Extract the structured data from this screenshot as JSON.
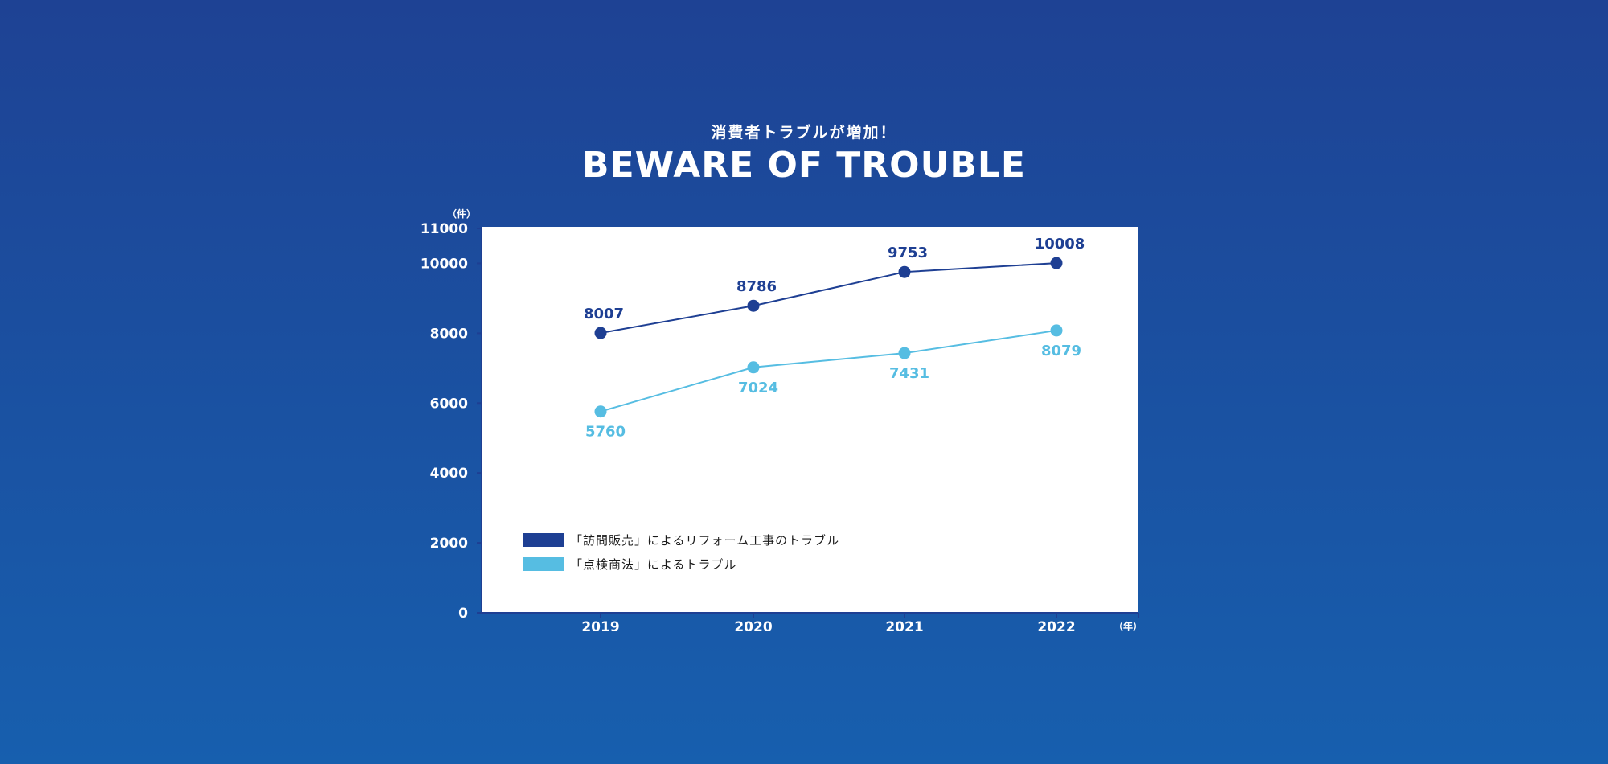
{
  "header": {
    "subtitle": "消費者トラブルが増加！",
    "title": "BEWARE OF TROUBLE"
  },
  "colors": {
    "background_top": "#1e4294",
    "background_bottom": "#175fae",
    "series_dark": "#1e3f93",
    "series_light": "#56bde2",
    "plot_background": "#ffffff"
  },
  "chart_data": {
    "type": "line",
    "x": [
      "2019",
      "2020",
      "2021",
      "2022"
    ],
    "series": [
      {
        "name": "「訪問販売」によるリフォーム工事のトラブル",
        "values": [
          8007,
          8786,
          9753,
          10008
        ],
        "color": "#1e3f93",
        "label_position": "above"
      },
      {
        "name": "「点検商法」によるトラブル",
        "values": [
          5760,
          7024,
          7431,
          8079
        ],
        "color": "#56bde2",
        "label_position": "below"
      }
    ],
    "ylim": [
      0,
      11000
    ],
    "yticks": [
      0,
      2000,
      4000,
      6000,
      8000,
      10000,
      11000
    ],
    "y_unit": "（件）",
    "x_unit": "（年）",
    "grid": false,
    "legend": "bottom-left"
  }
}
